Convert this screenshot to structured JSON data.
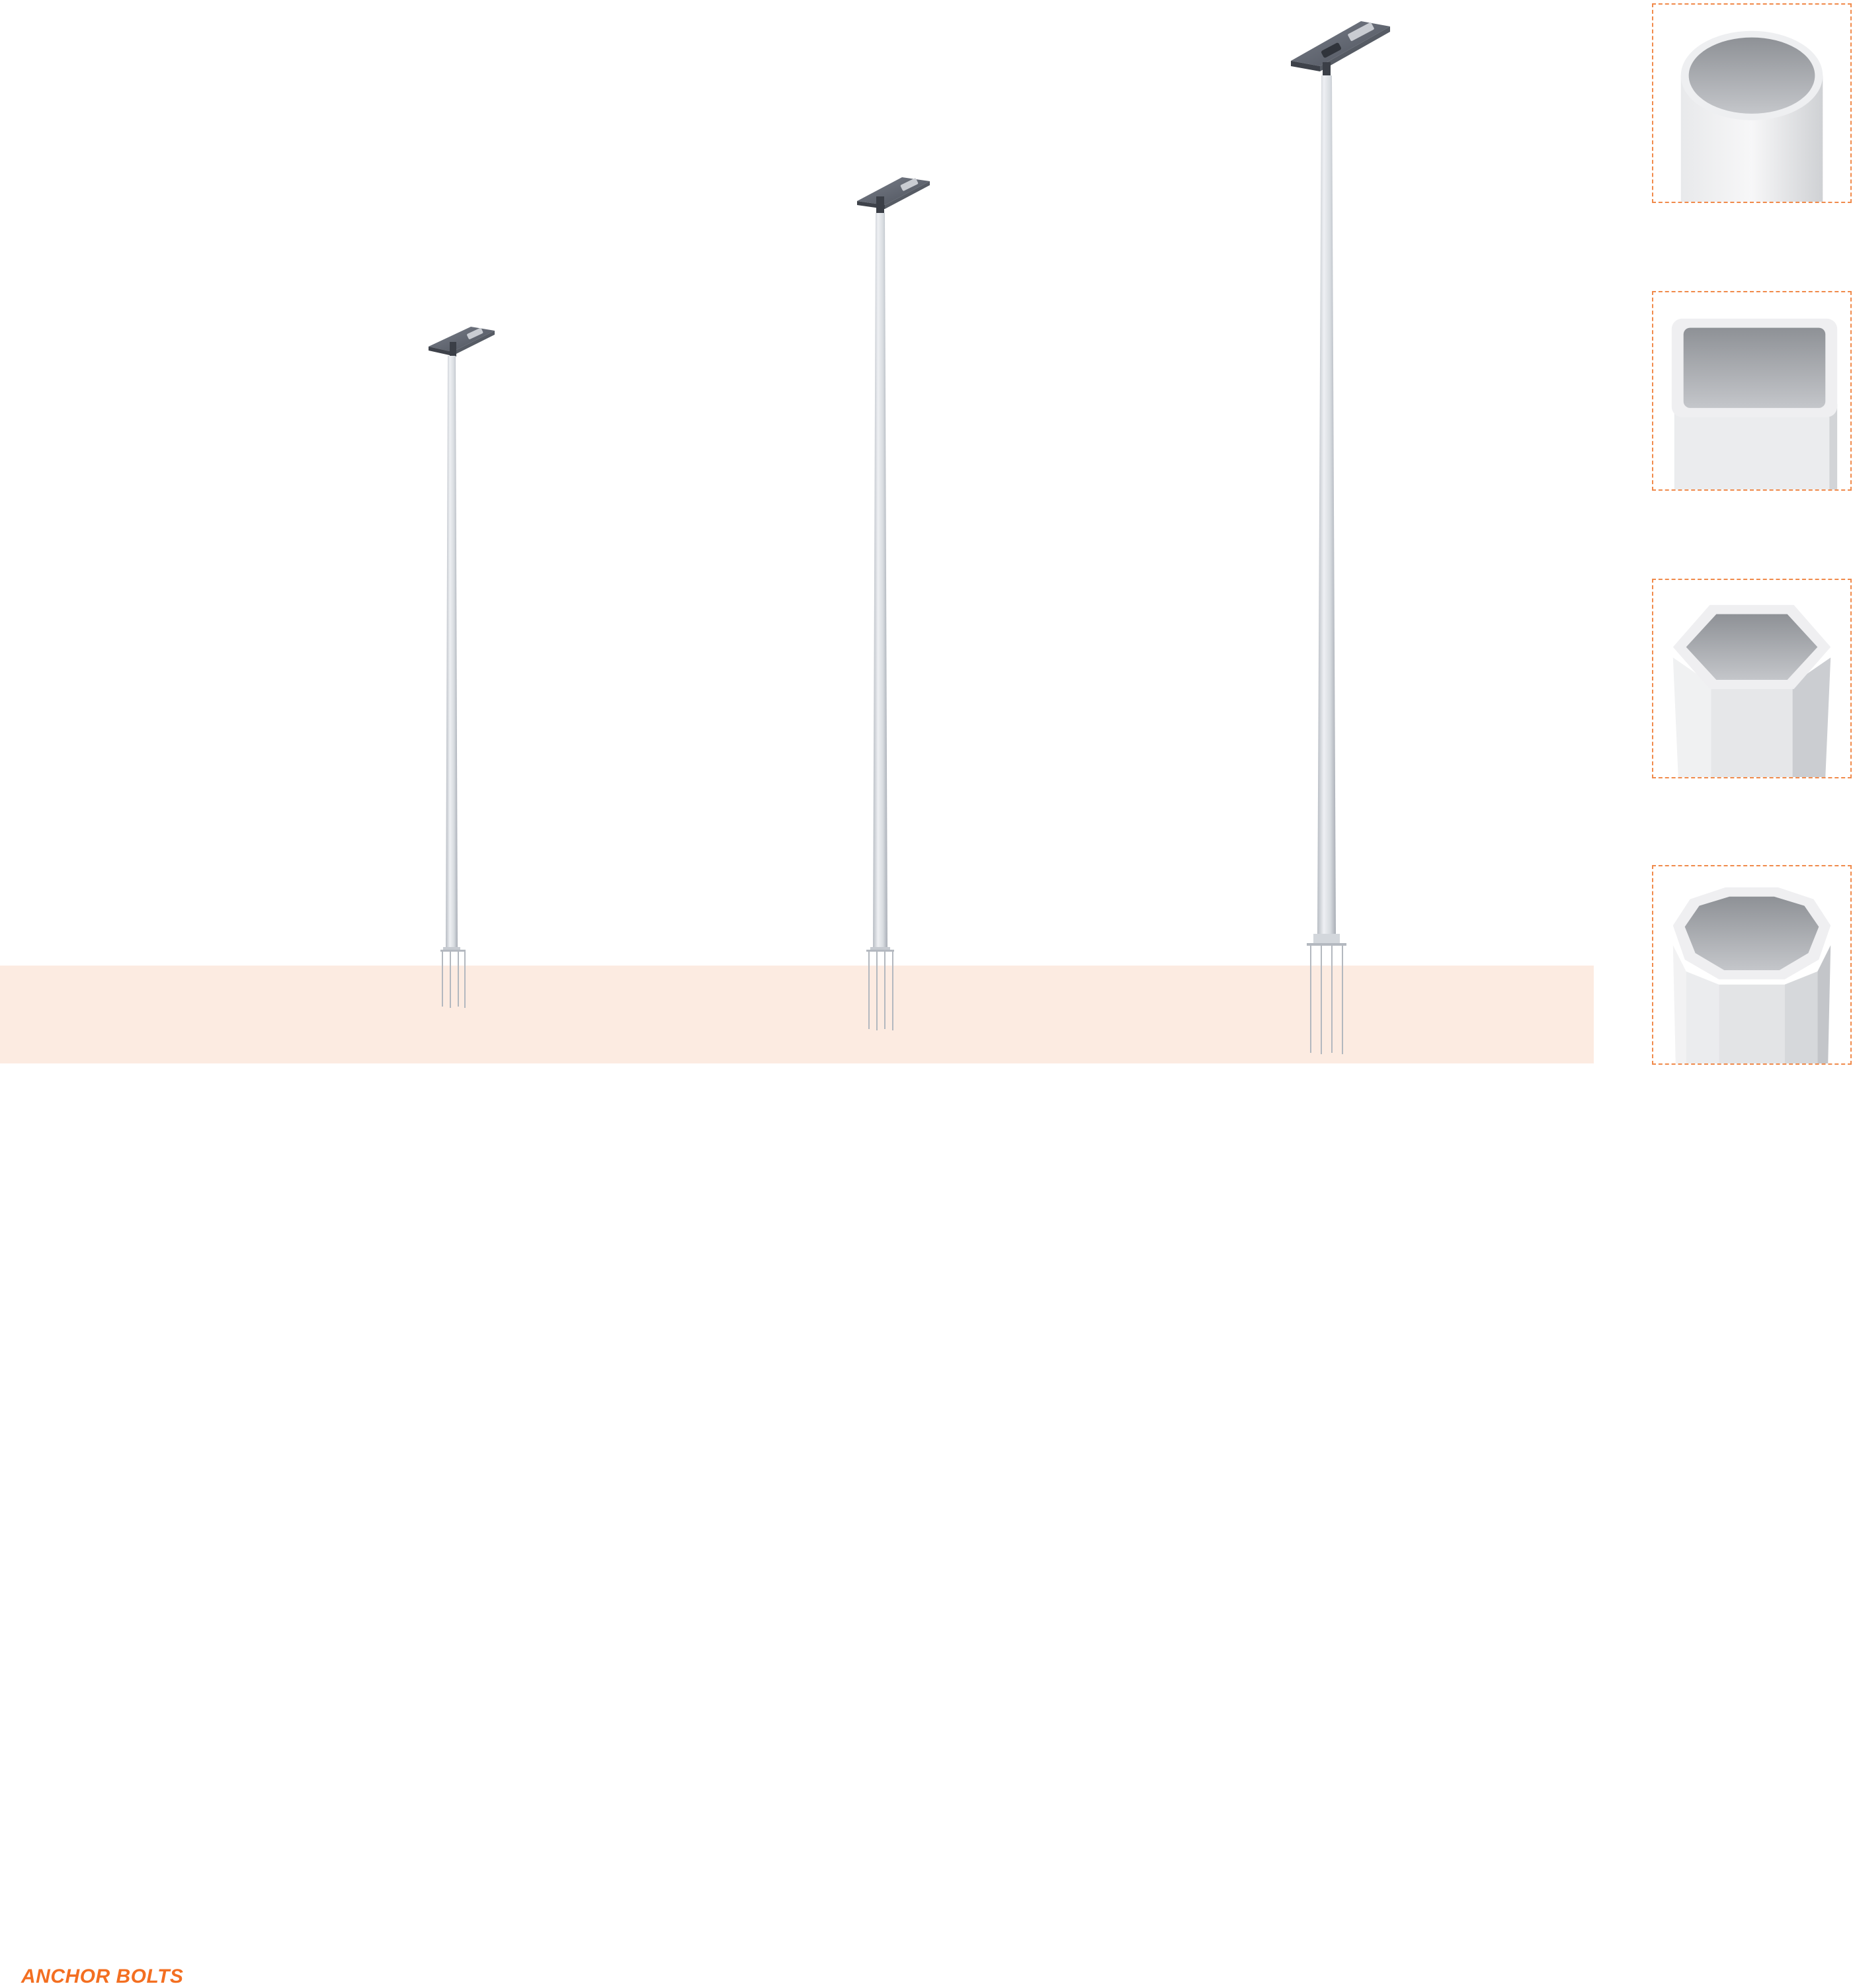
{
  "ground": {
    "label": "ANCHOR BOLTS",
    "band_color": "#fcebe1",
    "label_color": "#f36f21"
  },
  "poles": [
    {
      "name": "short-pole",
      "fixture": "solar-street-light-icon"
    },
    {
      "name": "medium-pole",
      "fixture": "solar-street-light-icon"
    },
    {
      "name": "tall-pole",
      "fixture": "solar-street-light-icon"
    }
  ],
  "profiles": [
    {
      "shape": "round",
      "icon": "round-pole-section-icon"
    },
    {
      "shape": "square",
      "icon": "square-pole-section-icon"
    },
    {
      "shape": "hexagonal",
      "icon": "hexagonal-pole-section-icon"
    },
    {
      "shape": "octagonal",
      "icon": "octagonal-pole-section-icon"
    }
  ],
  "colors": {
    "accent": "#f36f21",
    "card_border": "#f08a4b",
    "pole": "#d9dde2",
    "fixture": "#5a5f69"
  }
}
